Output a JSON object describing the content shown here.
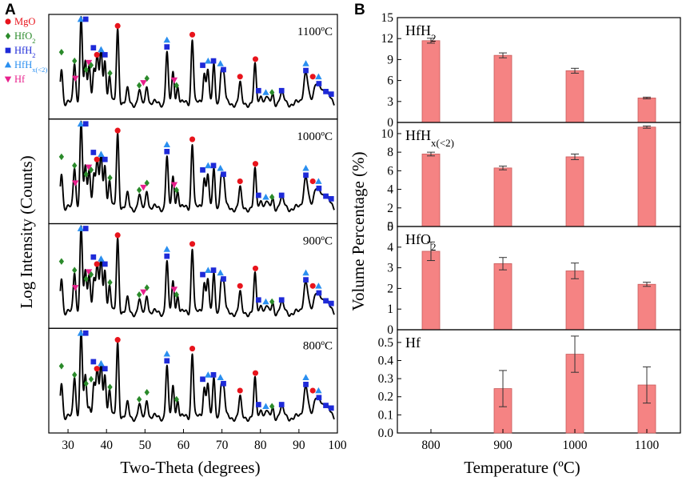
{
  "figure": {
    "panel_a_letter": "A",
    "panel_b_letter": "B"
  },
  "colors": {
    "mgo": "#e8141c",
    "hfo2": "#2a8a2a",
    "hfh2": "#1e2ad8",
    "hfhx": "#2a8ff0",
    "hf": "#e8208c",
    "bar_fill": "#f58383",
    "bar_stroke": "#c85a5a",
    "pattern_line": "#000000"
  },
  "chart_data": [
    {
      "type": "line",
      "id": "xrd",
      "xlabel": "Two-Theta (degrees)",
      "ylabel": "Log Intensity (Counts)",
      "xlim": [
        25,
        100
      ],
      "xticks": [
        30,
        40,
        50,
        60,
        70,
        80,
        90,
        100
      ],
      "legend": [
        {
          "name": "MgO",
          "marker": "circle",
          "color_key": "mgo"
        },
        {
          "name": "HfO",
          "sub": "2",
          "marker": "diamond",
          "color_key": "hfo2"
        },
        {
          "name": "HfH",
          "sub": "2",
          "marker": "square",
          "color_key": "hfh2"
        },
        {
          "name": "HfH",
          "sub": "x(<2)",
          "marker": "triangle-up",
          "color_key": "hfhx"
        },
        {
          "name": "Hf",
          "marker": "triangle-down",
          "color_key": "hf"
        }
      ],
      "legend_position": "top-left",
      "peaks": [
        {
          "x": 28.3,
          "h": 0.42
        },
        {
          "x": 31.7,
          "h": 0.48
        },
        {
          "x": 33.4,
          "h": 0.97
        },
        {
          "x": 34.5,
          "h": 0.45
        },
        {
          "x": 35.5,
          "h": 0.46
        },
        {
          "x": 36.7,
          "h": 0.4
        },
        {
          "x": 37.6,
          "h": 0.55
        },
        {
          "x": 38.6,
          "h": 0.62
        },
        {
          "x": 39.6,
          "h": 0.5
        },
        {
          "x": 40.8,
          "h": 0.3
        },
        {
          "x": 42.9,
          "h": 0.86
        },
        {
          "x": 45.5,
          "h": 0.15
        },
        {
          "x": 48.5,
          "h": 0.14
        },
        {
          "x": 50.5,
          "h": 0.22
        },
        {
          "x": 55.7,
          "h": 0.58
        },
        {
          "x": 57.3,
          "h": 0.35
        },
        {
          "x": 58.5,
          "h": 0.2
        },
        {
          "x": 62.3,
          "h": 0.75
        },
        {
          "x": 65.4,
          "h": 0.35
        },
        {
          "x": 66.3,
          "h": 0.4
        },
        {
          "x": 67.9,
          "h": 0.42
        },
        {
          "x": 69.8,
          "h": 0.38
        },
        {
          "x": 70.5,
          "h": 0.3
        },
        {
          "x": 74.7,
          "h": 0.22
        },
        {
          "x": 78.6,
          "h": 0.42
        },
        {
          "x": 80.2,
          "h": 0.12
        },
        {
          "x": 81.5,
          "h": 0.08
        },
        {
          "x": 83.2,
          "h": 0.1
        },
        {
          "x": 85.5,
          "h": 0.1
        },
        {
          "x": 91.8,
          "h": 0.38
        },
        {
          "x": 94.5,
          "h": 0.22
        },
        {
          "x": 95.6,
          "h": 0.18
        },
        {
          "x": 97.0,
          "h": 0.1
        },
        {
          "x": 98.2,
          "h": 0.08
        }
      ],
      "markers": [
        {
          "x": 33.3,
          "r": 1.0,
          "m": "triangle-up",
          "c": "hfhx"
        },
        {
          "x": 34.6,
          "r": 1.02,
          "m": "square",
          "c": "hfh2"
        },
        {
          "x": 42.9,
          "r": 0.9,
          "m": "circle",
          "c": "mgo"
        },
        {
          "x": 55.7,
          "r": 0.74,
          "m": "triangle-up",
          "c": "hfhx"
        },
        {
          "x": 55.7,
          "r": 0.66,
          "m": "square",
          "c": "hfh2"
        },
        {
          "x": 62.3,
          "r": 0.8,
          "m": "circle",
          "c": "mgo"
        },
        {
          "x": 28.3,
          "r": 0.6,
          "m": "diamond",
          "c": "hfo2"
        },
        {
          "x": 31.7,
          "r": 0.5,
          "m": "diamond",
          "c": "hfo2"
        },
        {
          "x": 36.6,
          "r": 0.65,
          "m": "square",
          "c": "hfh2"
        },
        {
          "x": 37.5,
          "r": 0.57,
          "m": "circle",
          "c": "mgo"
        },
        {
          "x": 38.6,
          "r": 0.63,
          "m": "triangle-up",
          "c": "hfhx"
        },
        {
          "x": 39.6,
          "r": 0.57,
          "m": "square",
          "c": "hfh2"
        },
        {
          "x": 35.4,
          "r": 0.48,
          "m": "triangle-down",
          "c": "hf"
        },
        {
          "x": 34.7,
          "r": 0.4,
          "m": "diamond",
          "c": "hfo2"
        },
        {
          "x": 36.0,
          "r": 0.45,
          "m": "diamond",
          "c": "hfo2"
        },
        {
          "x": 31.9,
          "r": 0.3,
          "m": "triangle-down",
          "c": "hf"
        },
        {
          "x": 40.9,
          "r": 0.36,
          "m": "diamond",
          "c": "hfo2"
        },
        {
          "x": 48.5,
          "r": 0.22,
          "m": "diamond",
          "c": "hfo2"
        },
        {
          "x": 50.5,
          "r": 0.3,
          "m": "diamond",
          "c": "hfo2"
        },
        {
          "x": 49.6,
          "r": 0.25,
          "m": "triangle-down",
          "c": "hf"
        },
        {
          "x": 57.6,
          "r": 0.28,
          "m": "triangle-down",
          "c": "hf"
        },
        {
          "x": 58.2,
          "r": 0.22,
          "m": "diamond",
          "c": "hfo2"
        },
        {
          "x": 65.0,
          "r": 0.45,
          "m": "square",
          "c": "hfh2"
        },
        {
          "x": 66.4,
          "r": 0.5,
          "m": "triangle-up",
          "c": "hfhx"
        },
        {
          "x": 67.8,
          "r": 0.5,
          "m": "square",
          "c": "hfh2"
        },
        {
          "x": 69.6,
          "r": 0.47,
          "m": "triangle-up",
          "c": "hfhx"
        },
        {
          "x": 70.4,
          "r": 0.4,
          "m": "square",
          "c": "hfh2"
        },
        {
          "x": 74.7,
          "r": 0.32,
          "m": "circle",
          "c": "mgo"
        },
        {
          "x": 78.7,
          "r": 0.52,
          "m": "circle",
          "c": "mgo"
        },
        {
          "x": 79.5,
          "r": 0.16,
          "m": "square",
          "c": "hfh2"
        },
        {
          "x": 81.4,
          "r": 0.14,
          "m": "triangle-up",
          "c": "hfhx"
        },
        {
          "x": 83.0,
          "r": 0.14,
          "m": "diamond",
          "c": "hfo2"
        },
        {
          "x": 85.5,
          "r": 0.16,
          "m": "square",
          "c": "hfh2"
        },
        {
          "x": 91.8,
          "r": 0.47,
          "m": "triangle-up",
          "c": "hfhx"
        },
        {
          "x": 91.8,
          "r": 0.39,
          "m": "square",
          "c": "hfh2"
        },
        {
          "x": 93.6,
          "r": 0.32,
          "m": "circle",
          "c": "mgo"
        },
        {
          "x": 95.1,
          "r": 0.32,
          "m": "triangle-up",
          "c": "hfhx"
        },
        {
          "x": 95.2,
          "r": 0.24,
          "m": "square",
          "c": "hfh2"
        },
        {
          "x": 97.0,
          "r": 0.15,
          "m": "square",
          "c": "hfh2"
        },
        {
          "x": 98.4,
          "r": 0.12,
          "m": "square",
          "c": "hfh2"
        }
      ],
      "patterns": [
        {
          "label": "1100ºC",
          "hf_peaks": true
        },
        {
          "label": "1000ºC",
          "hf_peaks": true
        },
        {
          "label": "900ºC",
          "hf_peaks": true
        },
        {
          "label": "800ºC",
          "hf_peaks": false
        }
      ]
    },
    {
      "type": "bar",
      "id": "volume",
      "xlabel": "Temperature (ºC)",
      "ylabel": "Volume Percentage (%)",
      "categories": [
        "800",
        "900",
        "1000",
        "1100"
      ],
      "panels": [
        {
          "name": "HfH",
          "sub": "2",
          "ylim": [
            0,
            15
          ],
          "yticks": [
            "0",
            "3",
            "6",
            "9",
            "12",
            "15"
          ],
          "values": [
            11.7,
            9.6,
            7.4,
            3.5
          ],
          "errors": [
            0.35,
            0.35,
            0.35,
            0.12
          ]
        },
        {
          "name": "HfH",
          "sub": "x(<2)",
          "ylim": [
            0,
            11.2
          ],
          "yticks": [
            "0",
            "2",
            "4",
            "6",
            "8",
            "10"
          ],
          "values": [
            7.8,
            6.3,
            7.5,
            10.7
          ],
          "errors": [
            0.2,
            0.2,
            0.3,
            0.12
          ]
        },
        {
          "name": "HfO",
          "sub": "2",
          "ylim": [
            0,
            5
          ],
          "yticks": [
            "0",
            "1",
            "2",
            "3",
            "4",
            "5"
          ],
          "values": [
            3.8,
            3.2,
            2.85,
            2.2
          ],
          "errors": [
            0.45,
            0.3,
            0.38,
            0.1
          ]
        },
        {
          "name": "Hf",
          "sub": "",
          "ylim": [
            0,
            0.57
          ],
          "yticks": [
            "0.0",
            "0.1",
            "0.2",
            "0.3",
            "0.4",
            "0.5"
          ],
          "values": [
            null,
            0.245,
            0.435,
            0.265
          ],
          "errors": [
            null,
            0.1,
            0.1,
            0.1
          ]
        }
      ]
    }
  ]
}
